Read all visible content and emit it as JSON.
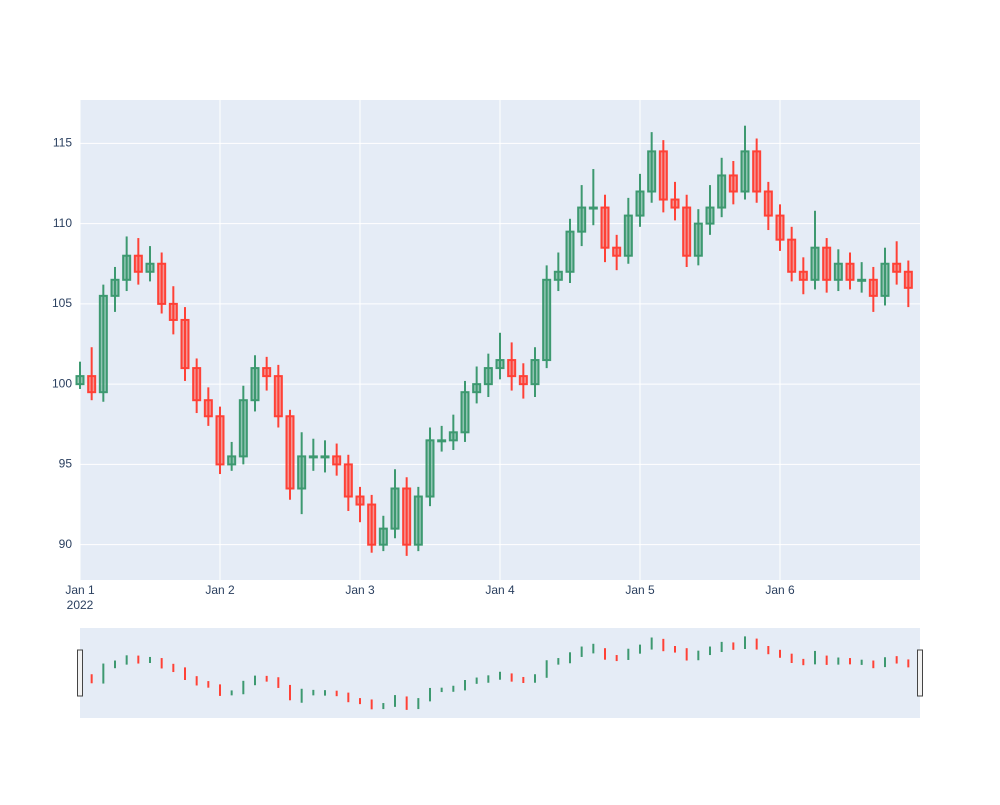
{
  "chart_data": {
    "type": "candlestick",
    "x": [
      "2022-01-01 00:00",
      "2022-01-01 02:00",
      "2022-01-01 04:00",
      "2022-01-01 06:00",
      "2022-01-01 08:00",
      "2022-01-01 10:00",
      "2022-01-01 12:00",
      "2022-01-01 14:00",
      "2022-01-01 16:00",
      "2022-01-01 18:00",
      "2022-01-01 20:00",
      "2022-01-01 22:00",
      "2022-01-02 00:00",
      "2022-01-02 02:00",
      "2022-01-02 04:00",
      "2022-01-02 06:00",
      "2022-01-02 08:00",
      "2022-01-02 10:00",
      "2022-01-02 12:00",
      "2022-01-02 14:00",
      "2022-01-02 16:00",
      "2022-01-02 18:00",
      "2022-01-02 20:00",
      "2022-01-02 22:00",
      "2022-01-03 00:00",
      "2022-01-03 02:00",
      "2022-01-03 04:00",
      "2022-01-03 06:00",
      "2022-01-03 08:00",
      "2022-01-03 10:00",
      "2022-01-03 12:00",
      "2022-01-03 14:00",
      "2022-01-03 16:00",
      "2022-01-03 18:00",
      "2022-01-03 20:00",
      "2022-01-03 22:00",
      "2022-01-04 00:00",
      "2022-01-04 02:00",
      "2022-01-04 04:00",
      "2022-01-04 06:00",
      "2022-01-04 08:00",
      "2022-01-04 10:00",
      "2022-01-04 12:00",
      "2022-01-04 14:00",
      "2022-01-04 16:00",
      "2022-01-04 18:00",
      "2022-01-04 20:00",
      "2022-01-04 22:00",
      "2022-01-05 00:00",
      "2022-01-05 02:00",
      "2022-01-05 04:00",
      "2022-01-05 06:00",
      "2022-01-05 08:00",
      "2022-01-05 10:00",
      "2022-01-05 12:00",
      "2022-01-05 14:00",
      "2022-01-05 16:00",
      "2022-01-05 18:00",
      "2022-01-05 20:00",
      "2022-01-05 22:00",
      "2022-01-06 00:00",
      "2022-01-06 02:00",
      "2022-01-06 04:00",
      "2022-01-06 06:00",
      "2022-01-06 08:00",
      "2022-01-06 10:00",
      "2022-01-06 12:00",
      "2022-01-06 14:00",
      "2022-01-06 16:00",
      "2022-01-06 18:00",
      "2022-01-06 20:00",
      "2022-01-06 22:00"
    ],
    "open": [
      100,
      100.5,
      99.5,
      105.5,
      106.5,
      108,
      107,
      107.5,
      105,
      104,
      101,
      99,
      98,
      95,
      95.5,
      99,
      101,
      100.5,
      98,
      93.5,
      95.5,
      95.5,
      95.5,
      95,
      93,
      92.5,
      90,
      91,
      93.5,
      90,
      93,
      96.5,
      96.5,
      97,
      99.5,
      100,
      101,
      101.5,
      100.5,
      100,
      101.5,
      106.5,
      107,
      109.5,
      111,
      111,
      108.5,
      108,
      110.5,
      112,
      114.5,
      111.5,
      111,
      108,
      110,
      111,
      113,
      112,
      114.5,
      112,
      110.5,
      109,
      107,
      106.5,
      108.5,
      106.5,
      107.5,
      106.5,
      106.5,
      105.5,
      107.5,
      107
    ],
    "high": [
      101.4,
      102.3,
      106.2,
      107.3,
      109.2,
      109.1,
      108.6,
      108.2,
      106.1,
      104.8,
      101.6,
      99.8,
      98.6,
      96.4,
      99.9,
      101.8,
      101.7,
      101.2,
      98.4,
      97,
      96.6,
      96.5,
      96.3,
      95.6,
      93.6,
      93.1,
      91.8,
      94.7,
      94.2,
      93.6,
      97.3,
      97.4,
      98.1,
      100.2,
      101.1,
      101.9,
      103.2,
      102.6,
      101.3,
      102.3,
      107.4,
      108.2,
      110.3,
      112.4,
      113.4,
      111.8,
      109.3,
      111.6,
      113.1,
      115.7,
      115.2,
      112.6,
      111.8,
      110.9,
      112.4,
      114.1,
      113.9,
      116.1,
      115.3,
      112.6,
      111.2,
      109.8,
      107.9,
      110.8,
      109.1,
      108.4,
      108.2,
      107.6,
      107.3,
      108.5,
      108.9,
      107.7
    ],
    "low": [
      99.7,
      99,
      98.9,
      104.5,
      105.8,
      106.2,
      106.4,
      104.4,
      103.1,
      100.2,
      98.2,
      97.4,
      94.4,
      94.6,
      95,
      98.3,
      99.6,
      97.3,
      92.8,
      91.9,
      94.6,
      94.5,
      94.3,
      92.1,
      91.4,
      89.5,
      89.6,
      90.4,
      89.3,
      89.6,
      92.4,
      95.8,
      95.9,
      96.4,
      98.8,
      99.2,
      100.3,
      99.6,
      99.1,
      99.2,
      101,
      105.8,
      106.3,
      108.6,
      109.9,
      107.6,
      107.1,
      107.5,
      109.8,
      111.3,
      110.7,
      110.2,
      107.3,
      107.4,
      109.3,
      110.4,
      111.2,
      111.5,
      111.3,
      109.6,
      108.3,
      106.4,
      105.6,
      105.9,
      105.7,
      105.8,
      105.9,
      105.7,
      104.5,
      104.9,
      106.2,
      104.8
    ],
    "close": [
      100.5,
      99.5,
      105.5,
      106.5,
      108,
      107,
      107.5,
      105,
      104,
      101,
      99,
      98,
      95,
      95.5,
      99,
      101,
      100.5,
      98,
      93.5,
      95.5,
      95.5,
      95.5,
      95,
      93,
      92.5,
      90,
      91,
      93.5,
      90,
      93,
      96.5,
      96.5,
      97,
      99.5,
      100,
      101,
      101.5,
      100.5,
      100,
      101.5,
      106.5,
      107,
      109.5,
      111,
      111,
      108.5,
      108,
      110.5,
      112,
      114.5,
      111.5,
      111,
      108,
      110,
      111,
      113,
      112,
      114.5,
      112,
      110.5,
      109,
      107,
      106.5,
      108.5,
      106.5,
      107.5,
      106.5,
      106.5,
      105.5,
      107.5,
      107,
      106
    ],
    "increasing_color": "#3d9970",
    "decreasing_color": "#ff4136",
    "xlim": [
      "2022-01-01 00:00",
      "2022-01-07 00:00"
    ],
    "xticks": [
      {
        "value": "2022-01-01 00:00",
        "label": "Jan 1"
      },
      {
        "value": "2022-01-02 00:00",
        "label": "Jan 2"
      },
      {
        "value": "2022-01-03 00:00",
        "label": "Jan 3"
      },
      {
        "value": "2022-01-04 00:00",
        "label": "Jan 4"
      },
      {
        "value": "2022-01-05 00:00",
        "label": "Jan 5"
      },
      {
        "value": "2022-01-06 00:00",
        "label": "Jan 6"
      }
    ],
    "x_year": "2022",
    "ylim": [
      87.8,
      117.7
    ],
    "yticks": [
      90,
      95,
      100,
      105,
      110,
      115
    ],
    "grid": true,
    "rangeslider": true
  }
}
